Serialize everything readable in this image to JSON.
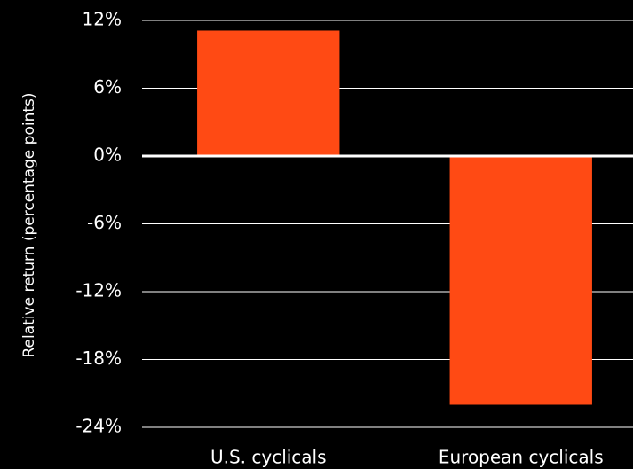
{
  "chart_data": {
    "type": "bar",
    "y_axis_label": "Relative return  (percentage points)",
    "categories": [
      "U.S. cyclicals",
      "European cyclicals"
    ],
    "values": [
      11.1,
      -22
    ],
    "color": "#ff4a14",
    "ylim": [
      -24,
      12
    ],
    "yticks": [
      {
        "value": 12,
        "label": "12%"
      },
      {
        "value": 6,
        "label": "6%"
      },
      {
        "value": 0,
        "label": "0%"
      },
      {
        "value": -6,
        "label": "-6%"
      },
      {
        "value": -12,
        "label": "-12%"
      },
      {
        "value": -18,
        "label": "-18%"
      },
      {
        "value": -24,
        "label": "-24%"
      }
    ],
    "grid": true
  }
}
